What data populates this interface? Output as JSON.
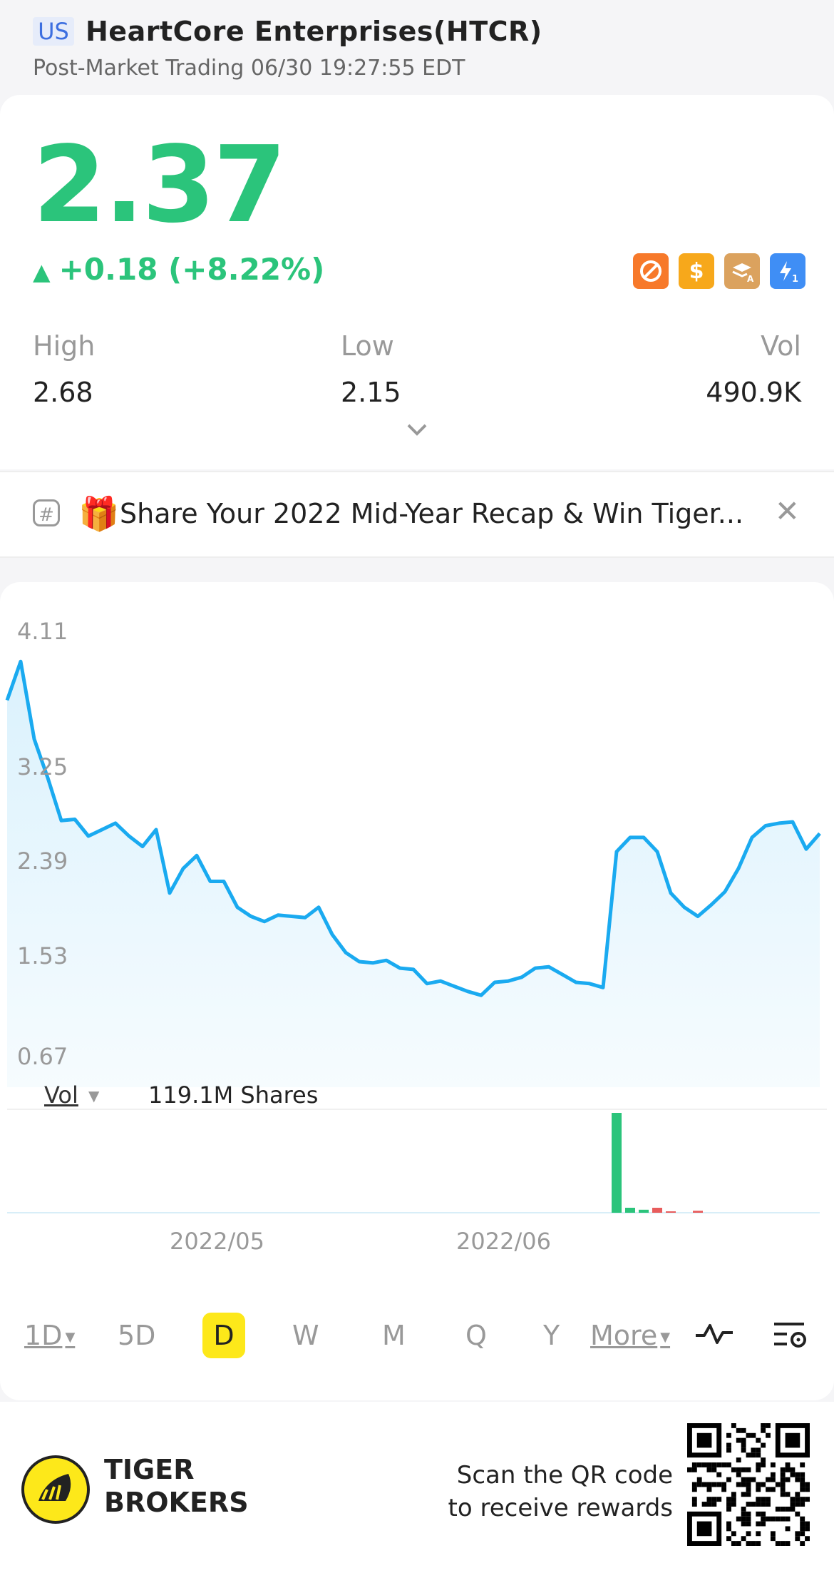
{
  "header": {
    "market_badge": "US",
    "title": "HeartCore Enterprises(HTCR)",
    "subtitle": "Post-Market Trading 06/30 19:27:55 EDT"
  },
  "quote": {
    "price": "2.37",
    "change": "+0.18 (+8.22%)",
    "badges": [
      "no-sign-icon",
      "dollar-icon",
      "stack-a-icon",
      "flash-1-icon"
    ],
    "stats": [
      {
        "label": "High",
        "value": "2.68"
      },
      {
        "label": "Low",
        "value": "2.15"
      },
      {
        "label": "Vol",
        "value": "490.9K"
      }
    ]
  },
  "banner": {
    "text": "Share Your 2022 Mid-Year Recap & Win Tiger...",
    "gift": "🎁"
  },
  "chart": {
    "yticks": [
      "4.11",
      "3.25",
      "2.39",
      "1.53",
      "0.67"
    ],
    "vol_label": "Vol",
    "vol_value": "119.1M Shares",
    "xlabels": [
      "2022/05",
      "2022/06"
    ],
    "line_color": "#1aaaf0",
    "up_color": "#2bc47b",
    "down_color": "#e85c5c"
  },
  "chart_data": {
    "type": "line",
    "ylim": [
      0.67,
      4.11
    ],
    "yticks": [
      4.11,
      3.25,
      2.39,
      1.53,
      0.67
    ],
    "values": [
      3.55,
      3.85,
      3.25,
      2.95,
      2.62,
      2.63,
      2.5,
      2.55,
      2.6,
      2.5,
      2.42,
      2.55,
      2.06,
      2.25,
      2.35,
      2.15,
      2.15,
      1.95,
      1.88,
      1.84,
      1.89,
      1.88,
      1.87,
      1.95,
      1.74,
      1.6,
      1.53,
      1.52,
      1.54,
      1.48,
      1.47,
      1.36,
      1.38,
      1.34,
      1.3,
      1.27,
      1.37,
      1.38,
      1.41,
      1.48,
      1.49,
      1.43,
      1.37,
      1.36,
      1.33,
      2.38,
      2.49,
      2.49,
      2.38,
      2.06,
      1.95,
      1.88,
      1.97,
      2.07,
      2.25,
      2.49,
      2.58,
      2.6,
      2.61,
      2.4,
      2.52
    ],
    "volume": {
      "max_shares": "119.1M Shares",
      "bars": [
        {
          "idx": 45,
          "rel": 1.0,
          "dir": "up"
        },
        {
          "idx": 46,
          "rel": 0.05,
          "dir": "up"
        },
        {
          "idx": 47,
          "rel": 0.03,
          "dir": "up"
        },
        {
          "idx": 48,
          "rel": 0.05,
          "dir": "down"
        },
        {
          "idx": 49,
          "rel": 0.01,
          "dir": "down"
        },
        {
          "idx": 51,
          "rel": 0.02,
          "dir": "down"
        }
      ]
    },
    "xlabels": [
      "2022/05",
      "2022/06"
    ]
  },
  "periods": [
    {
      "label": "1D",
      "caret": true,
      "underline": true
    },
    {
      "label": "5D"
    },
    {
      "label": "D",
      "active": true
    },
    {
      "label": "W"
    },
    {
      "label": "M"
    },
    {
      "label": "Q"
    },
    {
      "label": "Y"
    },
    {
      "label": "More",
      "caret": true,
      "underline": true
    }
  ],
  "tools": [
    "indicator-icon",
    "chart-settings-icon"
  ],
  "footer": {
    "brand_line1": "TIGER",
    "brand_line2": "BROKERS",
    "scan_line1": "Scan the QR code",
    "scan_line2": "to receive rewards"
  }
}
